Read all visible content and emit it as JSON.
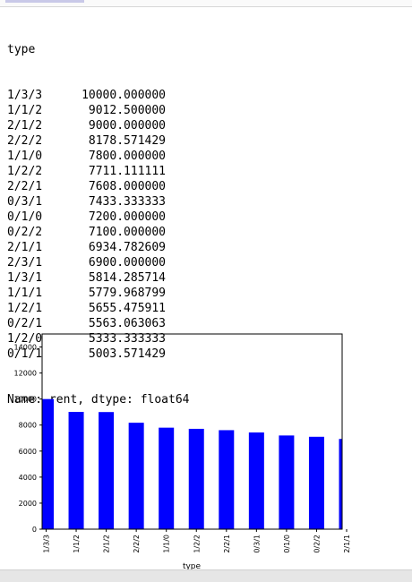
{
  "output": {
    "header": "type",
    "rows": [
      {
        "key": "1/3/3",
        "val": "10000.000000"
      },
      {
        "key": "1/1/2",
        "val": "9012.500000"
      },
      {
        "key": "2/1/2",
        "val": "9000.000000"
      },
      {
        "key": "2/2/2",
        "val": "8178.571429"
      },
      {
        "key": "1/1/0",
        "val": "7800.000000"
      },
      {
        "key": "1/2/2",
        "val": "7711.111111"
      },
      {
        "key": "2/2/1",
        "val": "7608.000000"
      },
      {
        "key": "0/3/1",
        "val": "7433.333333"
      },
      {
        "key": "0/1/0",
        "val": "7200.000000"
      },
      {
        "key": "0/2/2",
        "val": "7100.000000"
      },
      {
        "key": "2/1/1",
        "val": "6934.782609"
      },
      {
        "key": "2/3/1",
        "val": "6900.000000"
      },
      {
        "key": "1/3/1",
        "val": "5814.285714"
      },
      {
        "key": "1/1/1",
        "val": "5779.968799"
      },
      {
        "key": "1/2/1",
        "val": "5655.475911"
      },
      {
        "key": "0/2/1",
        "val": "5563.063063"
      },
      {
        "key": "1/2/0",
        "val": "5333.333333"
      },
      {
        "key": "0/1/1",
        "val": "5003.571429"
      }
    ],
    "footer": "Name: rent, dtype: float64"
  },
  "chart_data": {
    "type": "bar",
    "categories": [
      "1/3/3",
      "1/1/2",
      "2/1/2",
      "2/2/2",
      "1/1/0",
      "1/2/2",
      "2/2/1",
      "0/3/1",
      "0/1/0",
      "0/2/2",
      "2/1/1"
    ],
    "values": [
      10000,
      9012.5,
      9000,
      8178.571429,
      7800,
      7711.111111,
      7608,
      7433.333333,
      7200,
      7100,
      6934.782609
    ],
    "xlabel": "type",
    "ylabel": "",
    "ylim": [
      0,
      15000
    ],
    "yticks": [
      0,
      2000,
      4000,
      6000,
      8000,
      10000,
      12000,
      14000
    ],
    "bar_color": "#0000ff",
    "grid": false
  }
}
